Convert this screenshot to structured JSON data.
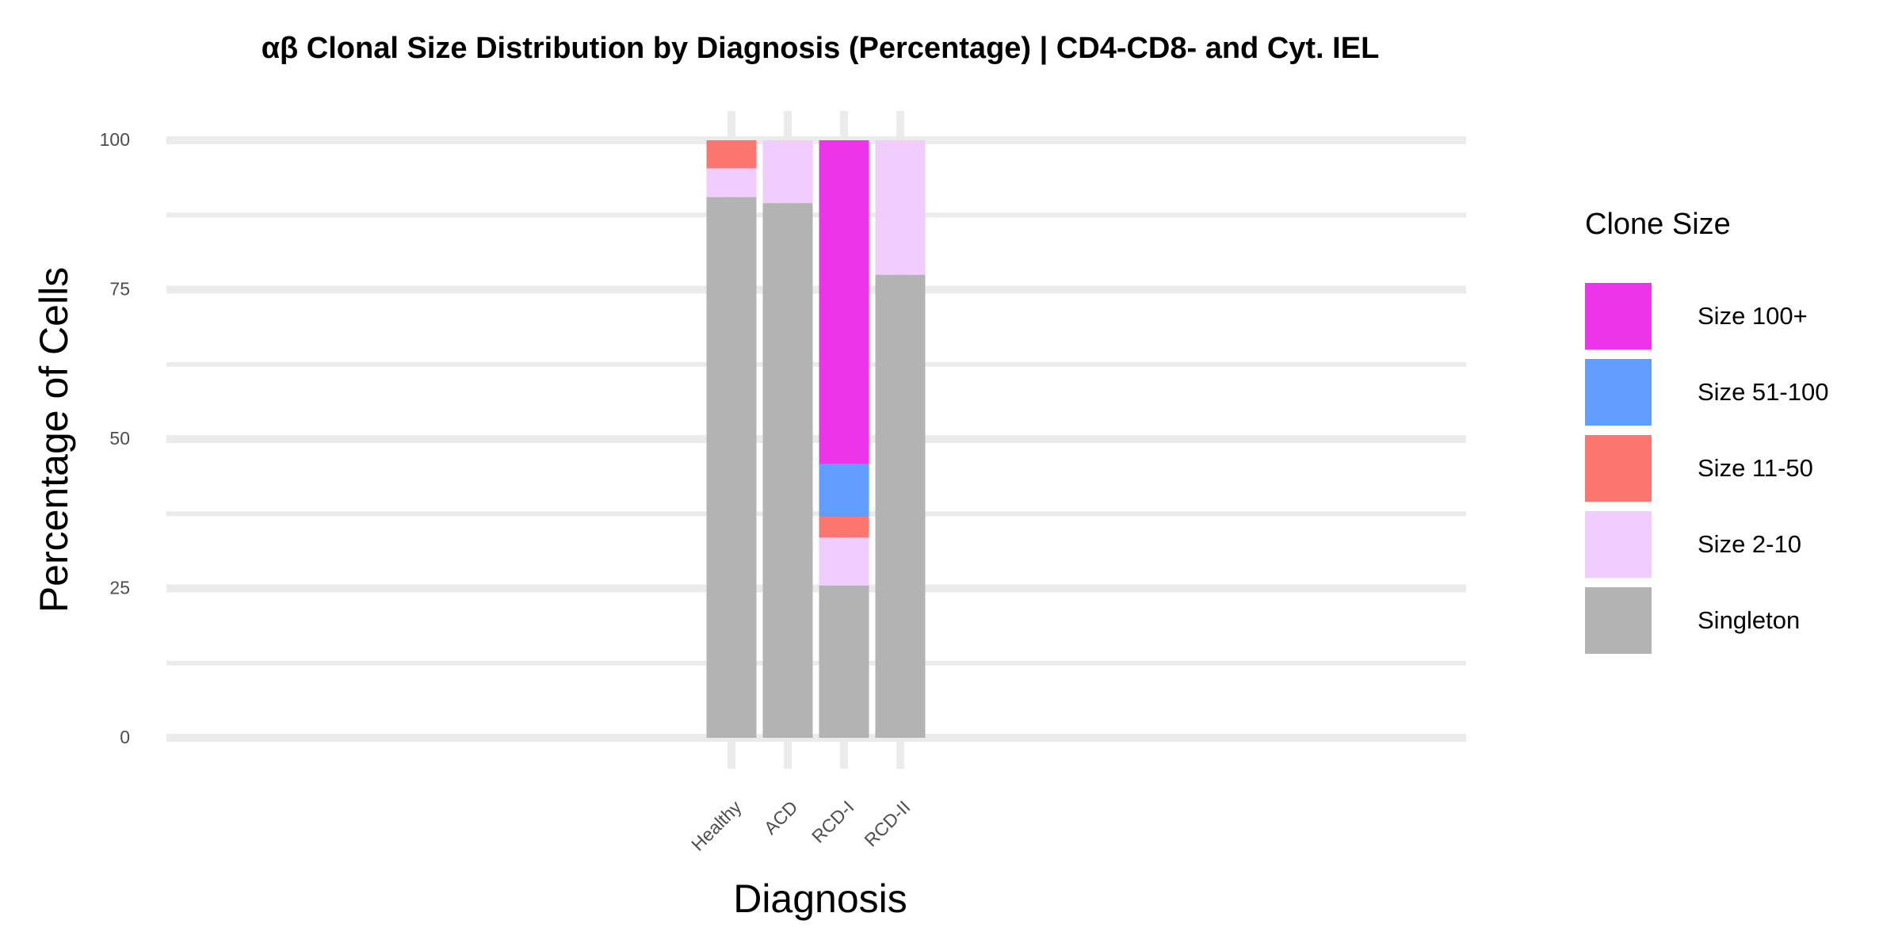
{
  "chart_data": {
    "type": "bar",
    "stacked": true,
    "title": "αβ Clonal Size Distribution by Diagnosis (Percentage) | CD4-CD8- and Cyt. IEL",
    "xlabel": "Diagnosis",
    "ylabel": "Percentage of Cells",
    "ylim": [
      0,
      100
    ],
    "yticks": [
      0,
      25,
      50,
      75,
      100
    ],
    "grid": true,
    "legend": {
      "title": "Clone Size",
      "placement": "right",
      "entries": [
        "Size 100+",
        "Size 51-100",
        "Size 11-50",
        "Size 2-10",
        "Singleton"
      ]
    },
    "categories": [
      "Healthy",
      "ACD",
      "RCD-I",
      "RCD-II"
    ],
    "series": [
      {
        "name": "Singleton",
        "color": "#B3B3B3",
        "values": [
          90.5,
          89.5,
          25.5,
          77.5
        ]
      },
      {
        "name": "Size 2-10",
        "color": "#F0CCFF",
        "values": [
          4.8,
          10.5,
          8.0,
          22.5
        ]
      },
      {
        "name": "Size 11-50",
        "color": "#FA766F",
        "values": [
          4.7,
          0,
          3.5,
          0
        ]
      },
      {
        "name": "Size 51-100",
        "color": "#619CFF",
        "values": [
          0,
          0,
          8.8,
          0
        ]
      },
      {
        "name": "Size 100+",
        "color": "#EE34E8",
        "values": [
          0,
          0,
          54.2,
          0
        ]
      }
    ]
  }
}
